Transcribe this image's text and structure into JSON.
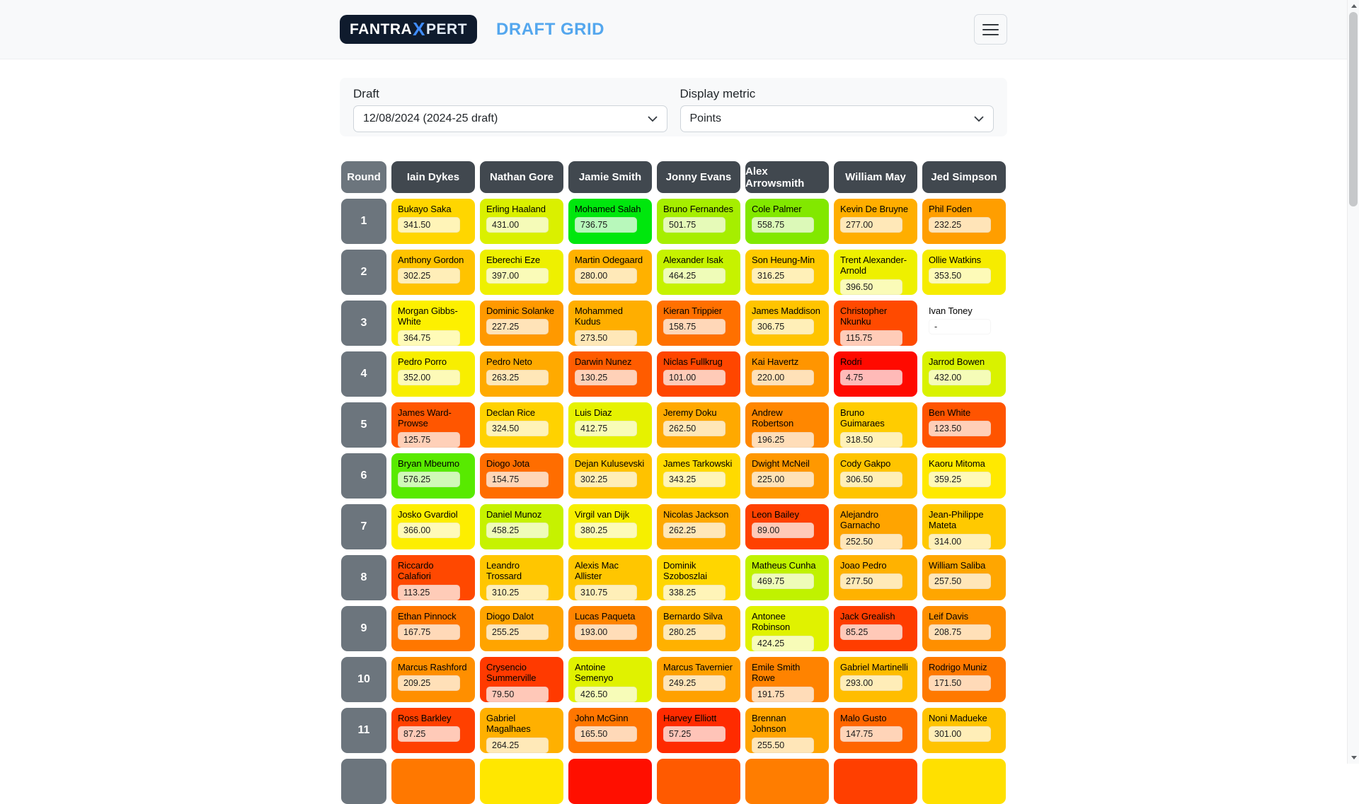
{
  "header": {
    "logo": {
      "part1": "FANTRA",
      "part2": "X",
      "part3": "PERT"
    },
    "title": "DRAFT GRID"
  },
  "filters": {
    "draft_label": "Draft",
    "draft_value": "12/08/2024 (2024-25 draft)",
    "metric_label": "Display metric",
    "metric_value": "Points"
  },
  "colors": {
    "navbar_bg": "#f8f9fa",
    "logo_bg": "#0f1b2d",
    "logo_x": "#3f8cff",
    "title_accent": "#54a7ee",
    "column_header_bg": "#41484f",
    "round_bg": "#6c757d",
    "card_bg": "#f8f9fa",
    "select_border": "#ced4da"
  },
  "grid": {
    "round_header": "Round",
    "managers": [
      "Iain Dykes",
      "Nathan Gore",
      "Jamie Smith",
      "Jonny Evans",
      "Alex Arrowsmith",
      "William May",
      "Jed Simpson"
    ],
    "rows": [
      {
        "round": "1",
        "picks": [
          {
            "name": "Bukayo Saka",
            "value": "341.50",
            "color": "#ffd600"
          },
          {
            "name": "Erling Haaland",
            "value": "431.00",
            "color": "#daf000"
          },
          {
            "name": "Mohamed Salah",
            "value": "736.75",
            "color": "#00e70d"
          },
          {
            "name": "Bruno Fernandes",
            "value": "501.75",
            "color": "#a6ee00"
          },
          {
            "name": "Cole Palmer",
            "value": "558.75",
            "color": "#82e800"
          },
          {
            "name": "Kevin De Bruyne",
            "value": "277.00",
            "color": "#ffae00"
          },
          {
            "name": "Phil Foden",
            "value": "232.25",
            "color": "#ff9e00"
          }
        ]
      },
      {
        "round": "2",
        "picks": [
          {
            "name": "Anthony Gordon",
            "value": "302.25",
            "color": "#ffc300"
          },
          {
            "name": "Eberechi Eze",
            "value": "397.00",
            "color": "#eef000"
          },
          {
            "name": "Martin Odegaard",
            "value": "280.00",
            "color": "#ffb100"
          },
          {
            "name": "Alexander Isak",
            "value": "464.25",
            "color": "#c6f200"
          },
          {
            "name": "Son Heung-Min",
            "value": "316.25",
            "color": "#ffca00"
          },
          {
            "name": "Trent Alexander-Arnold",
            "value": "396.50",
            "color": "#eef000"
          },
          {
            "name": "Ollie Watkins",
            "value": "353.50",
            "color": "#f6ec00"
          }
        ]
      },
      {
        "round": "3",
        "picks": [
          {
            "name": "Morgan Gibbs-White",
            "value": "364.75",
            "color": "#fdf000"
          },
          {
            "name": "Dominic Solanke",
            "value": "227.25",
            "color": "#ff9900"
          },
          {
            "name": "Mohammed Kudus",
            "value": "273.50",
            "color": "#ffae00"
          },
          {
            "name": "Kieran Trippier",
            "value": "158.75",
            "color": "#ff7000"
          },
          {
            "name": "James Maddison",
            "value": "306.75",
            "color": "#ffc400"
          },
          {
            "name": "Christopher Nkunku",
            "value": "115.75",
            "color": "#ff4a00"
          },
          {
            "name": "Ivan Toney",
            "value": "-",
            "color": "#ffffff"
          }
        ]
      },
      {
        "round": "4",
        "picks": [
          {
            "name": "Pedro Porro",
            "value": "352.00",
            "color": "#f8ee00"
          },
          {
            "name": "Pedro Neto",
            "value": "263.25",
            "color": "#ffaa00"
          },
          {
            "name": "Darwin Nunez",
            "value": "130.25",
            "color": "#ff5c00"
          },
          {
            "name": "Niclas Fullkrug",
            "value": "101.00",
            "color": "#ff4600"
          },
          {
            "name": "Kai Havertz",
            "value": "220.00",
            "color": "#ff9500"
          },
          {
            "name": "Rodri",
            "value": "4.75",
            "color": "#ff0a00"
          },
          {
            "name": "Jarrod Bowen",
            "value": "432.00",
            "color": "#d9f200"
          }
        ]
      },
      {
        "round": "5",
        "picks": [
          {
            "name": "James Ward-Prowse",
            "value": "125.75",
            "color": "#ff5600"
          },
          {
            "name": "Declan Rice",
            "value": "324.50",
            "color": "#ffd200"
          },
          {
            "name": "Luis Diaz",
            "value": "412.75",
            "color": "#e6f200"
          },
          {
            "name": "Jeremy Doku",
            "value": "262.50",
            "color": "#ffa900"
          },
          {
            "name": "Andrew Robertson",
            "value": "196.25",
            "color": "#ff8700"
          },
          {
            "name": "Bruno Guimaraes",
            "value": "318.50",
            "color": "#ffcc00"
          },
          {
            "name": "Ben White",
            "value": "123.50",
            "color": "#ff5400"
          }
        ]
      },
      {
        "round": "6",
        "picks": [
          {
            "name": "Bryan Mbeumo",
            "value": "576.25",
            "color": "#58ea00"
          },
          {
            "name": "Diogo Jota",
            "value": "154.75",
            "color": "#ff6d00"
          },
          {
            "name": "Dejan Kulusevski",
            "value": "302.25",
            "color": "#ffc200"
          },
          {
            "name": "James Tarkowski",
            "value": "343.25",
            "color": "#ffda00"
          },
          {
            "name": "Dwight McNeil",
            "value": "225.00",
            "color": "#ff9800"
          },
          {
            "name": "Cody Gakpo",
            "value": "306.50",
            "color": "#ffc400"
          },
          {
            "name": "Kaoru Mitoma",
            "value": "359.25",
            "color": "#ffe900"
          }
        ]
      },
      {
        "round": "7",
        "picks": [
          {
            "name": "Josko Gvardiol",
            "value": "366.00",
            "color": "#fdee00"
          },
          {
            "name": "Daniel Munoz",
            "value": "458.25",
            "color": "#c6f200"
          },
          {
            "name": "Virgil van Dijk",
            "value": "380.25",
            "color": "#f6ef00"
          },
          {
            "name": "Nicolas Jackson",
            "value": "262.25",
            "color": "#ffa900"
          },
          {
            "name": "Leon Bailey",
            "value": "89.00",
            "color": "#ff4100"
          },
          {
            "name": "Alejandro Garnacho",
            "value": "252.50",
            "color": "#ffa400"
          },
          {
            "name": "Jean-Philippe Mateta",
            "value": "314.00",
            "color": "#ffc900"
          }
        ]
      },
      {
        "round": "8",
        "picks": [
          {
            "name": "Riccardo Calafiori",
            "value": "113.25",
            "color": "#ff4800"
          },
          {
            "name": "Leandro Trossard",
            "value": "310.25",
            "color": "#ffc600"
          },
          {
            "name": "Alexis Mac Allister",
            "value": "310.75",
            "color": "#ffc600"
          },
          {
            "name": "Dominik Szoboszlai",
            "value": "338.25",
            "color": "#ffd600"
          },
          {
            "name": "Matheus Cunha",
            "value": "469.75",
            "color": "#c0f200"
          },
          {
            "name": "Joao Pedro",
            "value": "277.50",
            "color": "#ffb200"
          },
          {
            "name": "William Saliba",
            "value": "257.50",
            "color": "#ffa600"
          }
        ]
      },
      {
        "round": "9",
        "picks": [
          {
            "name": "Ethan Pinnock",
            "value": "167.75",
            "color": "#ff7700"
          },
          {
            "name": "Diogo Dalot",
            "value": "255.25",
            "color": "#ffa400"
          },
          {
            "name": "Lucas Paqueta",
            "value": "193.00",
            "color": "#ff8400"
          },
          {
            "name": "Bernardo Silva",
            "value": "280.25",
            "color": "#ffb100"
          },
          {
            "name": "Antonee Robinson",
            "value": "424.25",
            "color": "#e0f200"
          },
          {
            "name": "Jack Grealish",
            "value": "85.25",
            "color": "#ff3d00"
          },
          {
            "name": "Leif Davis",
            "value": "208.75",
            "color": "#ff8f00"
          }
        ]
      },
      {
        "round": "10",
        "picks": [
          {
            "name": "Marcus Rashford",
            "value": "209.25",
            "color": "#ff8f00"
          },
          {
            "name": "Crysencio Summerville",
            "value": "79.50",
            "color": "#ff3a00"
          },
          {
            "name": "Antoine Semenyo",
            "value": "426.50",
            "color": "#e0f200"
          },
          {
            "name": "Marcus Tavernier",
            "value": "249.25",
            "color": "#ffa100"
          },
          {
            "name": "Emile Smith Rowe",
            "value": "191.75",
            "color": "#ff8300"
          },
          {
            "name": "Gabriel Martinelli",
            "value": "293.00",
            "color": "#ffbd00"
          },
          {
            "name": "Rodrigo Muniz",
            "value": "171.50",
            "color": "#ff7900"
          }
        ]
      },
      {
        "round": "11",
        "picks": [
          {
            "name": "Ross Barkley",
            "value": "87.25",
            "color": "#ff4000"
          },
          {
            "name": "Gabriel Magalhaes",
            "value": "264.25",
            "color": "#ffb000"
          },
          {
            "name": "John McGinn",
            "value": "165.50",
            "color": "#ff7600"
          },
          {
            "name": "Harvey Elliott",
            "value": "57.25",
            "color": "#ff2b00"
          },
          {
            "name": "Brennan Johnson",
            "value": "255.50",
            "color": "#ffa400"
          },
          {
            "name": "Malo Gusto",
            "value": "147.75",
            "color": "#ff6600"
          },
          {
            "name": "Noni Madueke",
            "value": "301.00",
            "color": "#ffc300"
          }
        ]
      }
    ],
    "partial_row_colors": [
      "#ff7800",
      "#ffe700",
      "#ff0f00",
      "#ff5a00",
      "#ff7d00",
      "#ff3f00",
      "#ffe000"
    ]
  }
}
